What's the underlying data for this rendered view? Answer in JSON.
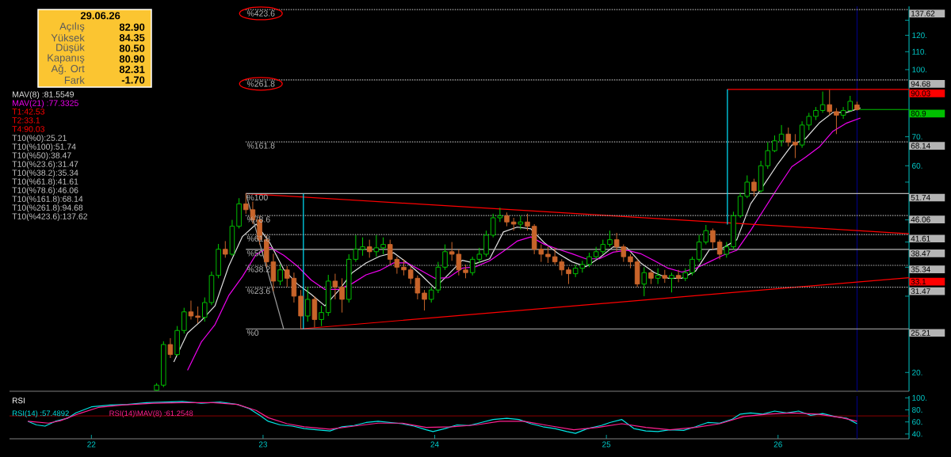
{
  "chart_data": [
    {
      "type": "other",
      "title": "29.06.26",
      "color": "#fbc531",
      "annotations": [
        "Açılış",
        "82.90",
        "Yüksek",
        "84.35",
        "Düşük",
        "80.50",
        "Kapanış",
        "80.90",
        "Ağ. Ort",
        "82.31",
        "Fark",
        "-1.70"
      ]
    },
    {
      "type": "candlestick",
      "x": [
        2022.38,
        2022.42,
        2022.46,
        2022.5,
        2022.54,
        2022.58,
        2022.62,
        2022.66,
        2022.7,
        2022.74,
        2022.78,
        2022.82,
        2022.86,
        2022.9,
        2022.94,
        2022.98,
        2023.02,
        2023.06,
        2023.1,
        2023.14,
        2023.18,
        2023.22,
        2023.26,
        2023.3,
        2023.34,
        2023.38,
        2023.42,
        2023.46,
        2023.5,
        2023.54,
        2023.58,
        2023.62,
        2023.66,
        2023.7,
        2023.74,
        2023.78,
        2023.82,
        2023.86,
        2023.9,
        2023.94,
        2023.98,
        2024.02,
        2024.06,
        2024.1,
        2024.14,
        2024.18,
        2024.22,
        2024.26,
        2024.3,
        2024.34,
        2024.38,
        2024.42,
        2024.46,
        2024.5,
        2024.54,
        2024.58,
        2024.62,
        2024.66,
        2024.7,
        2024.74,
        2024.78,
        2024.82,
        2024.86,
        2024.9,
        2024.94,
        2024.98,
        2025.02,
        2025.06,
        2025.1,
        2025.14,
        2025.18,
        2025.22,
        2025.26,
        2025.3,
        2025.34,
        2025.38,
        2025.42,
        2025.46,
        2025.5,
        2025.54,
        2025.58,
        2025.62,
        2025.66,
        2025.7,
        2025.74,
        2025.78,
        2025.82,
        2025.86,
        2025.9,
        2025.94,
        2025.98,
        2026.02,
        2026.06,
        2026.1,
        2026.14,
        2026.18,
        2026.22,
        2026.26,
        2026.3,
        2026.34,
        2026.38,
        2026.42,
        2026.46
      ],
      "ohlc": [
        [
          18.2,
          18.9,
          18.15,
          18.7
        ],
        [
          18.7,
          23.6,
          18.5,
          23.2
        ],
        [
          23.2,
          24.0,
          21.6,
          22.0
        ],
        [
          22.0,
          25.6,
          21.8,
          25.0
        ],
        [
          25.0,
          28.2,
          24.6,
          27.6
        ],
        [
          27.6,
          29.3,
          26.5,
          27.0
        ],
        [
          27.0,
          28.4,
          26.0,
          26.8
        ],
        [
          26.8,
          29.8,
          26.2,
          29.0
        ],
        [
          29.0,
          34.2,
          28.6,
          33.5
        ],
        [
          33.5,
          39.6,
          33.0,
          38.5
        ],
        [
          38.5,
          40.2,
          36.8,
          37.5
        ],
        [
          37.5,
          45.0,
          37.2,
          43.5
        ],
        [
          43.5,
          50.5,
          43.0,
          49.0
        ],
        [
          49.0,
          51.74,
          46.5,
          47.5
        ],
        [
          47.5,
          49.6,
          44.0,
          45.0
        ],
        [
          45.0,
          46.0,
          39.5,
          40.5
        ],
        [
          40.5,
          41.5,
          35.0,
          36.0
        ],
        [
          36.0,
          37.6,
          30.8,
          32.5
        ],
        [
          32.5,
          35.5,
          31.8,
          34.5
        ],
        [
          34.5,
          35.2,
          31.5,
          33.0
        ],
        [
          33.0,
          34.0,
          29.0,
          30.0
        ],
        [
          30.0,
          31.0,
          25.21,
          27.0
        ],
        [
          27.0,
          31.5,
          26.2,
          29.5
        ],
        [
          29.5,
          30.0,
          25.4,
          26.5
        ],
        [
          26.5,
          28.5,
          25.6,
          27.5
        ],
        [
          27.5,
          33.6,
          27.0,
          32.5
        ],
        [
          32.5,
          33.8,
          29.5,
          31.5
        ],
        [
          31.5,
          33.0,
          27.5,
          29.5
        ],
        [
          29.5,
          37.5,
          29.0,
          36.5
        ],
        [
          36.5,
          41.5,
          36.0,
          38.5
        ],
        [
          38.5,
          41.0,
          37.2,
          39.0
        ],
        [
          39.0,
          40.5,
          36.8,
          38.0
        ],
        [
          38.0,
          41.5,
          37.0,
          38.8
        ],
        [
          38.8,
          41.0,
          37.5,
          39.5
        ],
        [
          39.5,
          40.5,
          35.5,
          36.5
        ],
        [
          36.5,
          37.0,
          33.8,
          35.0
        ],
        [
          35.0,
          36.5,
          33.5,
          34.5
        ],
        [
          34.5,
          35.2,
          32.0,
          33.0
        ],
        [
          33.0,
          33.5,
          29.5,
          30.5
        ],
        [
          30.5,
          31.0,
          27.8,
          29.5
        ],
        [
          29.5,
          31.5,
          29.0,
          31.0
        ],
        [
          31.0,
          36.0,
          30.5,
          35.0
        ],
        [
          35.0,
          39.5,
          34.5,
          38.0
        ],
        [
          38.0,
          40.0,
          36.2,
          37.5
        ],
        [
          37.5,
          38.5,
          33.5,
          34.5
        ],
        [
          34.5,
          35.5,
          33.0,
          34.0
        ],
        [
          34.0,
          37.0,
          33.5,
          36.5
        ],
        [
          36.5,
          38.8,
          35.8,
          37.5
        ],
        [
          37.5,
          42.5,
          37.0,
          41.5
        ],
        [
          41.5,
          46.5,
          41.0,
          45.5
        ],
        [
          45.5,
          48.0,
          44.5,
          46.0
        ],
        [
          46.0,
          46.8,
          43.5,
          44.5
        ],
        [
          44.5,
          45.5,
          42.5,
          44.0
        ],
        [
          44.0,
          46.0,
          42.8,
          44.5
        ],
        [
          44.5,
          46.5,
          42.5,
          43.5
        ],
        [
          43.5,
          44.0,
          37.5,
          38.5
        ],
        [
          38.5,
          39.5,
          36.0,
          37.5
        ],
        [
          37.5,
          39.0,
          35.8,
          37.0
        ],
        [
          37.0,
          38.8,
          35.5,
          36.0
        ],
        [
          36.0,
          36.5,
          33.5,
          34.5
        ],
        [
          34.5,
          35.0,
          32.0,
          33.8
        ],
        [
          33.8,
          35.5,
          33.2,
          34.8
        ],
        [
          34.8,
          36.2,
          34.0,
          35.5
        ],
        [
          35.5,
          37.8,
          35.0,
          37.0
        ],
        [
          37.0,
          39.0,
          36.5,
          38.0
        ],
        [
          38.0,
          40.5,
          37.5,
          39.5
        ],
        [
          39.5,
          42.5,
          39.0,
          40.5
        ],
        [
          40.5,
          42.0,
          38.0,
          39.0
        ],
        [
          39.0,
          39.5,
          36.0,
          37.0
        ],
        [
          37.0,
          37.5,
          34.8,
          36.0
        ],
        [
          36.0,
          36.5,
          31.5,
          32.0
        ],
        [
          32.0,
          35.0,
          30.0,
          34.0
        ],
        [
          34.0,
          34.5,
          32.0,
          33.0
        ],
        [
          33.0,
          34.8,
          32.0,
          33.5
        ],
        [
          33.5,
          34.5,
          32.2,
          33.0
        ],
        [
          33.0,
          34.0,
          30.6,
          33.5
        ],
        [
          33.5,
          34.5,
          32.3,
          33.0
        ],
        [
          33.0,
          34.8,
          32.5,
          34.0
        ],
        [
          34.0,
          37.0,
          33.5,
          36.5
        ],
        [
          36.5,
          41.5,
          36.0,
          40.0
        ],
        [
          40.0,
          43.8,
          39.5,
          42.5
        ],
        [
          42.5,
          43.0,
          38.5,
          40.0
        ],
        [
          40.0,
          40.5,
          36.5,
          37.5
        ],
        [
          37.5,
          40.0,
          36.8,
          39.0
        ],
        [
          39.0,
          47.0,
          38.5,
          46.0
        ],
        [
          46.0,
          52.0,
          45.5,
          51.0
        ],
        [
          51.0,
          57.0,
          50.5,
          55.0
        ],
        [
          55.0,
          56.0,
          51.0,
          52.5
        ],
        [
          52.5,
          61.6,
          52.0,
          60.0
        ],
        [
          60.0,
          68.0,
          59.0,
          65.0
        ],
        [
          65.0,
          70.5,
          64.5,
          68.5
        ],
        [
          68.5,
          74.5,
          66.5,
          71.0
        ],
        [
          71.0,
          73.5,
          66.5,
          68.0
        ],
        [
          68.0,
          71.0,
          62.5,
          67.0
        ],
        [
          67.0,
          76.0,
          66.0,
          74.5
        ],
        [
          74.5,
          79.5,
          72.5,
          78.0
        ],
        [
          78.0,
          82.0,
          76.5,
          80.5
        ],
        [
          80.5,
          89.0,
          79.5,
          83.0
        ],
        [
          83.0,
          89.8,
          78.5,
          80.0
        ],
        [
          80.0,
          81.5,
          71.0,
          78.5
        ],
        [
          78.5,
          82.0,
          77.0,
          80.5
        ],
        [
          80.5,
          87.0,
          80.0,
          84.5
        ],
        [
          82.9,
          84.35,
          80.5,
          80.9
        ]
      ],
      "colors": [
        "#00d000",
        "#00d000",
        "#c8642a",
        "#00d000",
        "#00d000",
        "#c8642a",
        "#c8642a",
        "#00d000",
        "#00d000",
        "#00d000",
        "#c8642a",
        "#00d000",
        "#00d000",
        "#c8642a",
        "#c8642a",
        "#c8642a",
        "#c8642a",
        "#c8642a",
        "#00d000",
        "#c8642a",
        "#c8642a",
        "#c8642a",
        "#00d000",
        "#c8642a",
        "#00d000",
        "#00d000",
        "#c8642a",
        "#c8642a",
        "#00d000",
        "#00d000",
        "#00d000",
        "#c8642a",
        "#00d000",
        "#00d000",
        "#c8642a",
        "#c8642a",
        "#c8642a",
        "#c8642a",
        "#c8642a",
        "#c8642a",
        "#00d000",
        "#00d000",
        "#00d000",
        "#c8642a",
        "#c8642a",
        "#c8642a",
        "#00d000",
        "#00d000",
        "#00d000",
        "#00d000",
        "#00d000",
        "#c8642a",
        "#c8642a",
        "#00d000",
        "#c8642a",
        "#c8642a",
        "#c8642a",
        "#c8642a",
        "#c8642a",
        "#c8642a",
        "#c8642a",
        "#00d000",
        "#00d000",
        "#00d000",
        "#00d000",
        "#00d000",
        "#00d000",
        "#c8642a",
        "#c8642a",
        "#c8642a",
        "#c8642a",
        "#00d000",
        "#c8642a",
        "#00d000",
        "#c8642a",
        "#00d000",
        "#c8642a",
        "#00d000",
        "#00d000",
        "#00d000",
        "#00d000",
        "#c8642a",
        "#c8642a",
        "#00d000",
        "#00d000",
        "#00d000",
        "#00d000",
        "#c8642a",
        "#00d000",
        "#00d000",
        "#00d000",
        "#00d000",
        "#c8642a",
        "#c8642a",
        "#00d000",
        "#00d000",
        "#00d000",
        "#00d000",
        "#c8642a",
        "#c8642a",
        "#00d000",
        "#00d000",
        "#c8642a"
      ],
      "series": [
        {
          "type": "line",
          "name": "MAV(8) :81.5549",
          "color": "#e0e0e0",
          "x": [
            2022.48,
            2022.56,
            2022.64,
            2022.72,
            2022.8,
            2022.88,
            2022.96,
            2023.04,
            2023.12,
            2023.2,
            2023.28,
            2023.36,
            2023.44,
            2023.52,
            2023.6,
            2023.68,
            2023.76,
            2023.84,
            2023.92,
            2024.0,
            2024.08,
            2024.16,
            2024.24,
            2024.32,
            2024.4,
            2024.48,
            2024.56,
            2024.64,
            2024.72,
            2024.8,
            2024.88,
            2024.96,
            2025.04,
            2025.12,
            2025.2,
            2025.28,
            2025.36,
            2025.44,
            2025.52,
            2025.6,
            2025.68,
            2025.76,
            2025.84,
            2025.92,
            2026.0,
            2026.08,
            2026.16,
            2026.24,
            2026.32,
            2026.4,
            2026.48
          ],
          "values": [
            21.15,
            24.66,
            26.34,
            28.5,
            35.2,
            41.2,
            44.0,
            39.8,
            34.6,
            32.0,
            30.3,
            28.5,
            30.9,
            34.0,
            35.8,
            37.1,
            37.8,
            35.8,
            33.6,
            31.3,
            33.7,
            36.3,
            35.7,
            36.6,
            42.2,
            43.3,
            42.9,
            39.8,
            37.6,
            36.0,
            35.1,
            36.8,
            39.0,
            38.8,
            35.8,
            34.0,
            33.0,
            33.0,
            34.3,
            38.4,
            38.8,
            40.5,
            49.0,
            54.4,
            60.7,
            66.9,
            69.3,
            75.3,
            79.7,
            79.7,
            81.55
          ]
        },
        {
          "type": "line",
          "name": "MAV(21) :77.3325",
          "color": "#f000f0",
          "x": [
            2022.56,
            2022.64,
            2022.72,
            2022.8,
            2022.88,
            2022.96,
            2023.04,
            2023.12,
            2023.2,
            2023.28,
            2023.36,
            2023.44,
            2023.52,
            2023.6,
            2023.68,
            2023.76,
            2023.84,
            2023.92,
            2024.0,
            2024.08,
            2024.16,
            2024.24,
            2024.32,
            2024.4,
            2024.48,
            2024.56,
            2024.64,
            2024.72,
            2024.8,
            2024.88,
            2024.96,
            2025.04,
            2025.12,
            2025.2,
            2025.28,
            2025.36,
            2025.44,
            2025.52,
            2025.6,
            2025.68,
            2025.76,
            2025.84,
            2025.92,
            2026.0,
            2026.08,
            2026.16,
            2026.24,
            2026.32,
            2026.4,
            2026.48
          ],
          "values": [
            20.24,
            23.5,
            25.8,
            30.1,
            33.3,
            37.5,
            38.9,
            37.3,
            35.2,
            32.7,
            31.1,
            31.1,
            32.1,
            33.6,
            34.4,
            35.8,
            35.8,
            34.4,
            33.0,
            33.1,
            34.8,
            35.1,
            36.2,
            38.1,
            40.2,
            41.1,
            39.5,
            38.5,
            37.6,
            36.6,
            36.6,
            37.9,
            38.3,
            37.6,
            36.2,
            34.8,
            34.1,
            34.8,
            36.0,
            37.3,
            38.3,
            42.5,
            47.7,
            53.5,
            59.7,
            62.8,
            66.3,
            72.1,
            75.3,
            77.33
          ]
        },
        {
          "type": "line",
          "color": "#ff0000",
          "x": [
            2022.9,
            2026.763
          ],
          "values": [
            51.74,
            41.8
          ]
        },
        {
          "type": "line",
          "color": "#ff0000",
          "x": [
            2023.22,
            2026.763
          ],
          "values": [
            25.21,
            33.1
          ],
          "value_labels": [
            null,
            "33.1"
          ]
        },
        {
          "type": "line",
          "color": "#ff0000",
          "x": [
            2025.705,
            2026.763
          ],
          "values": [
            90.03,
            90.03
          ],
          "value_labels": [
            null,
            "90.03"
          ]
        },
        {
          "type": "line",
          "name": "%0",
          "color": "#b4b4b4",
          "line_style": "solid",
          "x": [
            2022.9,
            2026.763
          ],
          "values": [
            25.21,
            25.21
          ],
          "value_labels": [
            null,
            "25.21"
          ]
        },
        {
          "type": "line",
          "name": "%100",
          "color": "#b4b4b4",
          "line_style": "solid",
          "x": [
            2022.9,
            2026.763
          ],
          "values": [
            51.74,
            51.74
          ],
          "value_labels": [
            null,
            "51.74"
          ]
        },
        {
          "type": "line",
          "name": "%50",
          "color": "#b4b4b4",
          "line_style": "solid",
          "x": [
            2022.9,
            2026.763
          ],
          "values": [
            38.47,
            38.47
          ],
          "value_labels": [
            null,
            "38.47"
          ]
        },
        {
          "type": "line",
          "name": "%23.6",
          "color": "#b4b4b4",
          "line_style": "dotted",
          "x": [
            2022.9,
            2026.763
          ],
          "values": [
            31.47,
            31.47
          ],
          "value_labels": [
            null,
            "31.47"
          ]
        },
        {
          "type": "line",
          "name": "%38.2",
          "color": "#b4b4b4",
          "line_style": "dotted",
          "x": [
            2022.9,
            2026.763
          ],
          "values": [
            35.34,
            35.34
          ],
          "value_labels": [
            null,
            "35.34"
          ]
        },
        {
          "type": "line",
          "name": "%61.8",
          "color": "#b4b4b4",
          "line_style": "dotted",
          "x": [
            2022.9,
            2026.763
          ],
          "values": [
            41.61,
            41.61
          ],
          "value_labels": [
            null,
            "41.61"
          ]
        },
        {
          "type": "line",
          "name": "%78.6",
          "color": "#b4b4b4",
          "line_style": "dotted",
          "x": [
            2022.9,
            2026.763
          ],
          "values": [
            46.06,
            46.06
          ],
          "value_labels": [
            null,
            "46.06"
          ]
        },
        {
          "type": "line",
          "name": "%161.8",
          "color": "#b4b4b4",
          "line_style": "dotted",
          "x": [
            2022.9,
            2026.763
          ],
          "values": [
            68.14,
            68.14
          ],
          "value_labels": [
            null,
            "68.14"
          ]
        },
        {
          "type": "line",
          "name": "%261.8",
          "color": "#b4b4b4",
          "line_style": "dotted",
          "x": [
            2022.9,
            2026.763
          ],
          "values": [
            94.68,
            94.68
          ],
          "value_labels": [
            null,
            "94.68"
          ]
        },
        {
          "type": "line",
          "name": "%423.6",
          "color": "#b4b4b4",
          "line_style": "dotted",
          "x": [
            2022.9,
            2026.763
          ],
          "values": [
            137.62,
            137.62
          ],
          "value_labels": [
            null,
            "137.62"
          ]
        },
        {
          "type": "line",
          "color": "#9a9a9a",
          "x": [
            2022.9,
            2023.12
          ],
          "values": [
            51.74,
            25.21
          ]
        },
        {
          "type": "line",
          "color": "#00e5ff",
          "x": [
            2023.235,
            2023.235
          ],
          "values": [
            25.21,
            51.74
          ]
        },
        {
          "type": "line",
          "color": "#00e5ff",
          "x": [
            2025.705,
            2025.705
          ],
          "values": [
            43.9,
            90.03
          ]
        },
        {
          "type": "line",
          "color": "#00c000",
          "x": [
            2026.46,
            2026.763
          ],
          "values": [
            80.9,
            80.9
          ],
          "value_labels": [
            null,
            "80.9"
          ]
        }
      ],
      "annotations": [
        "T1:42.53",
        "T2:33.1",
        "T4:90.03",
        "T10(%0):25.21",
        "T10(%100):51.74",
        "T10(%50):38.47",
        "T10(%23.6):31.47",
        "T10(%38.2):35.34",
        "T10(%61.8):41.61",
        "T10(%78.6):46.06",
        "T10(%161.8):68.14",
        "T10(%261.8):94.68",
        "T10(%423.6):137.62"
      ],
      "ref_lines": [
        {
          "axis": "x",
          "value": 2026.46,
          "color": "#000090"
        }
      ],
      "xlim": [
        2021.523,
        2026.763
      ],
      "ylim": [
        18.1,
        140
      ],
      "log": "y",
      "yticks": [
        {
          "value": 20,
          "label": "20."
        },
        {
          "value": 30,
          "label": null
        },
        {
          "value": 35,
          "label": null
        },
        {
          "value": 40,
          "label": null
        },
        {
          "value": 45,
          "label": null
        },
        {
          "value": 55,
          "label": null
        },
        {
          "value": 60,
          "label": "60."
        },
        {
          "value": 70,
          "label": "70."
        },
        {
          "value": 100,
          "label": "100."
        },
        {
          "value": 110,
          "label": "110."
        },
        {
          "value": 120,
          "label": "120."
        },
        {
          "value": 130,
          "label": null
        }
      ],
      "tick_labels": "y",
      "legend": "top left"
    },
    {
      "type": "line",
      "title": "RSI",
      "series": [
        {
          "name": "RSI(14) :57.4892",
          "color": "#00e5e5",
          "x": [
            2021.63,
            2021.68,
            2021.73,
            2021.79,
            2021.86,
            2021.91,
            2022.0,
            2022.11,
            2022.21,
            2022.32,
            2022.43,
            2022.53,
            2022.64,
            2022.75,
            2022.85,
            2022.92,
            2022.98,
            2023.03,
            2023.1,
            2023.17,
            2023.24,
            2023.31,
            2023.39,
            2023.46,
            2023.53,
            2023.6,
            2023.67,
            2023.74,
            2023.81,
            2023.88,
            2023.95,
            2023.99,
            2024.06,
            2024.13,
            2024.2,
            2024.27,
            2024.34,
            2024.42,
            2024.49,
            2024.56,
            2024.63,
            2024.7,
            2024.77,
            2024.82,
            2024.89,
            2024.97,
            2025.02,
            2025.09,
            2025.16,
            2025.23,
            2025.3,
            2025.37,
            2025.45,
            2025.52,
            2025.59,
            2025.66,
            2025.73,
            2025.78,
            2025.84,
            2025.91,
            2025.98,
            2026.05,
            2026.12,
            2026.19,
            2026.26,
            2026.33,
            2026.4,
            2026.46
          ],
          "values": [
            61,
            55,
            53,
            61,
            66,
            75,
            85,
            88,
            89,
            92,
            93,
            94,
            91,
            93,
            89,
            82,
            71,
            61,
            55,
            53,
            49,
            47,
            45,
            52,
            54,
            59,
            61,
            59,
            57,
            53,
            47,
            44,
            49,
            55,
            54,
            59,
            64,
            66,
            64,
            57,
            52,
            49,
            44,
            41,
            49,
            54,
            59,
            64,
            49,
            45,
            44,
            47,
            46,
            52,
            59,
            58,
            64,
            73,
            75,
            73,
            78,
            75,
            78,
            71,
            74,
            69,
            66,
            57
          ]
        },
        {
          "name": "RSI(14)\\MAV(8) :61.2548",
          "color": "#ff2090",
          "x": [
            2021.63,
            2021.75,
            2021.82,
            2021.93,
            2022.04,
            2022.18,
            2022.36,
            2022.53,
            2022.71,
            2022.85,
            2022.96,
            2023.03,
            2023.14,
            2023.24,
            2023.39,
            2023.53,
            2023.67,
            2023.81,
            2023.95,
            2024.1,
            2024.24,
            2024.38,
            2024.52,
            2024.66,
            2024.81,
            2024.95,
            2025.09,
            2025.23,
            2025.37,
            2025.52,
            2025.66,
            2025.8,
            2025.94,
            2026.08,
            2026.23,
            2026.37,
            2026.46
          ],
          "values": [
            61,
            58,
            62,
            74,
            84,
            88,
            91,
            92,
            92,
            89,
            79,
            67,
            57,
            52,
            48,
            53,
            58,
            58,
            51,
            52,
            55,
            61,
            61,
            54,
            47,
            51,
            57,
            51,
            47,
            51,
            57,
            69,
            73,
            75,
            73,
            67,
            61
          ]
        }
      ],
      "ref_lines": [
        {
          "axis": "y",
          "value": 70,
          "color": "#8b0000"
        },
        {
          "axis": "x",
          "value": 2026.46,
          "color": "#000090"
        }
      ],
      "xlim": [
        2021.523,
        2026.763
      ],
      "ylim": [
        32,
        103
      ],
      "xticks": [
        {
          "value": 2022,
          "label": "22"
        },
        {
          "value": 2023,
          "label": "23"
        },
        {
          "value": 2024,
          "label": "24"
        },
        {
          "value": 2025,
          "label": "25"
        },
        {
          "value": 2026,
          "label": "26"
        }
      ],
      "yticks": [
        {
          "value": 40,
          "label": "40."
        },
        {
          "value": 60,
          "label": "60."
        },
        {
          "value": 80,
          "label": "80."
        },
        {
          "value": 100,
          "label": "100."
        }
      ],
      "legend": "top left"
    }
  ]
}
